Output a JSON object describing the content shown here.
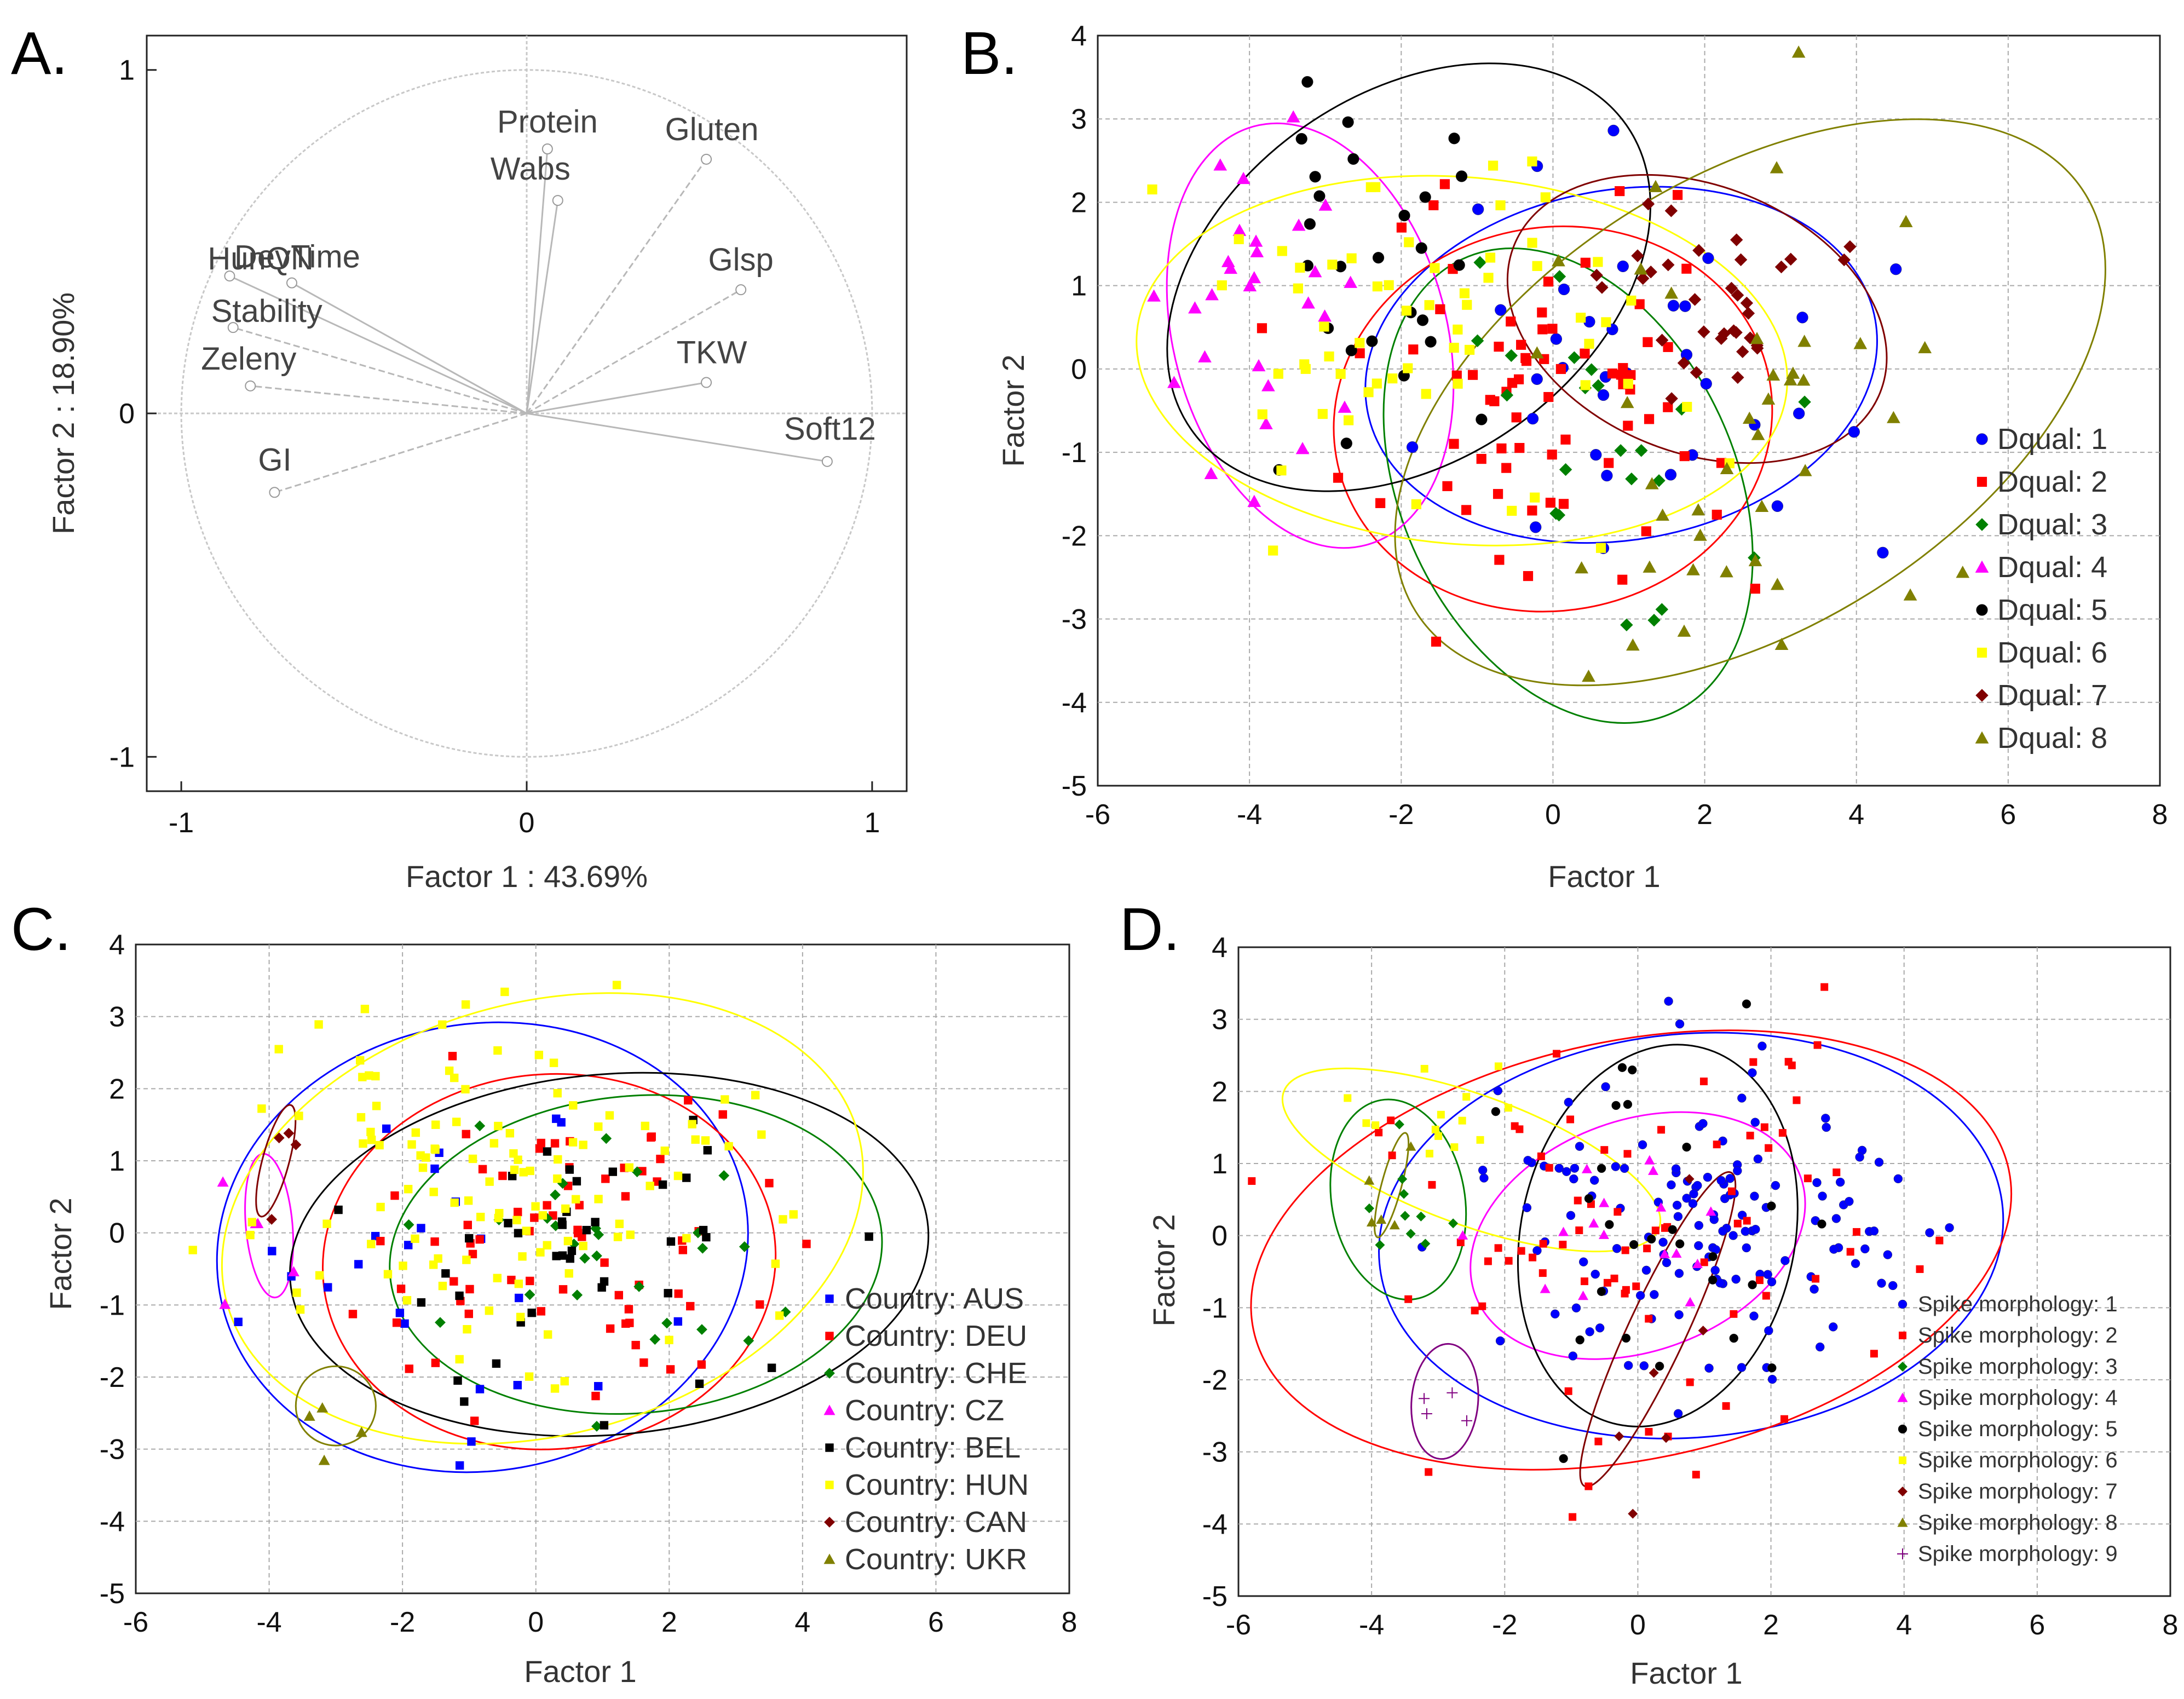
{
  "chart_data": [
    {
      "type": "scatter",
      "letter": "A.",
      "title": "",
      "xlabel": "Factor 1 : 43.69%",
      "ylabel": "Factor 2 : 18.90%",
      "xlim": [
        -1.1,
        1.1
      ],
      "ylim": [
        -1.1,
        1.1
      ],
      "xticks": [
        "-1",
        "0",
        "1"
      ],
      "yticks": [
        "-1",
        "0",
        "1"
      ],
      "xtick_values": [
        -1,
        0,
        1
      ],
      "ytick_values": [
        -1,
        0,
        1
      ],
      "grid": false,
      "unit_circle": true,
      "vectors": [
        {
          "name": "Protein",
          "x": 0.06,
          "y": 0.77,
          "line": "solid"
        },
        {
          "name": "Wabs",
          "x": 0.09,
          "y": 0.62,
          "line": "solid"
        },
        {
          "name": "Gluten",
          "x": 0.52,
          "y": 0.74,
          "line": "dashed"
        },
        {
          "name": "Glsp",
          "x": 0.62,
          "y": 0.36,
          "line": "dashed"
        },
        {
          "name": "TKW",
          "x": 0.52,
          "y": 0.09,
          "line": "solid"
        },
        {
          "name": "Soft12",
          "x": 0.87,
          "y": -0.14,
          "line": "solid"
        },
        {
          "name": "DevTime",
          "x": -0.68,
          "y": 0.38,
          "line": "solid"
        },
        {
          "name": "HunQN",
          "x": -0.86,
          "y": 0.4,
          "line": "solid"
        },
        {
          "name": "Stability",
          "x": -0.85,
          "y": 0.25,
          "line": "dashed"
        },
        {
          "name": "Zeleny",
          "x": -0.8,
          "y": 0.08,
          "line": "dashed"
        },
        {
          "name": "GI",
          "x": -0.73,
          "y": -0.23,
          "line": "dashed"
        }
      ]
    },
    {
      "type": "scatter",
      "letter": "B.",
      "xlabel": "Factor 1",
      "ylabel": "Factor 2",
      "xlim": [
        -6,
        8
      ],
      "ylim": [
        -5,
        4
      ],
      "xticks": [
        "-6",
        "-4",
        "-2",
        "0",
        "2",
        "4",
        "6",
        "8"
      ],
      "yticks": [
        "-5",
        "-4",
        "-3",
        "-2",
        "-1",
        "0",
        "1",
        "2",
        "3",
        "4"
      ],
      "grid": true,
      "legend_position": "bottom-right",
      "series": [
        {
          "name": "Dqual: 1",
          "color": "#0000ff",
          "marker": "circle",
          "center": [
            0.8,
            -0.2
          ],
          "spread": [
            1.3,
            1.1
          ],
          "n": 34,
          "ellipse": {
            "cx": 0.9,
            "cy": 0.05,
            "rx": 3.4,
            "ry": 2.1,
            "rot": -10
          }
        },
        {
          "name": "Dqual: 2",
          "color": "#ff0000",
          "marker": "square",
          "center": [
            -0.3,
            -0.4
          ],
          "spread": [
            1.4,
            1.1
          ],
          "n": 70,
          "ellipse": {
            "cx": 0.0,
            "cy": -0.6,
            "rx": 2.9,
            "ry": 2.3,
            "rot": -10
          }
        },
        {
          "name": "Dqual: 3",
          "color": "#008000",
          "marker": "diamond",
          "center": [
            0.5,
            -1.0
          ],
          "spread": [
            1.1,
            1.3
          ],
          "n": 22,
          "ellipse": {
            "cx": 0.2,
            "cy": -1.4,
            "rx": 2.2,
            "ry": 3.0,
            "rot": -25
          }
        },
        {
          "name": "Dqual: 4",
          "color": "#ff00ff",
          "marker": "triangle",
          "center": [
            -3.8,
            0.6
          ],
          "spread": [
            0.6,
            1.2
          ],
          "n": 28,
          "ellipse": {
            "cx": -3.2,
            "cy": 0.4,
            "rx": 1.8,
            "ry": 2.6,
            "rot": -15
          }
        },
        {
          "name": "Dqual: 5",
          "color": "#000000",
          "marker": "circle",
          "center": [
            -2.3,
            1.2
          ],
          "spread": [
            1.0,
            1.1
          ],
          "n": 26,
          "ellipse": {
            "cx": -1.9,
            "cy": 1.1,
            "rx": 3.5,
            "ry": 2.2,
            "rot": -35
          }
        },
        {
          "name": "Dqual: 6",
          "color": "#ffff00",
          "marker": "square",
          "center": [
            -1.6,
            0.0
          ],
          "spread": [
            1.6,
            1.2
          ],
          "n": 60,
          "ellipse": {
            "cx": -1.2,
            "cy": 0.1,
            "rx": 4.3,
            "ry": 2.2,
            "rot": 5
          }
        },
        {
          "name": "Dqual: 7",
          "color": "#800000",
          "marker": "diamond",
          "center": [
            2.0,
            0.9
          ],
          "spread": [
            0.8,
            0.6
          ],
          "n": 34,
          "ellipse": {
            "cx": 1.9,
            "cy": 0.6,
            "rx": 2.6,
            "ry": 1.6,
            "rot": 22
          }
        },
        {
          "name": "Dqual: 8",
          "color": "#808000",
          "marker": "triangle",
          "center": [
            2.6,
            -0.4
          ],
          "spread": [
            1.4,
            1.6
          ],
          "n": 40,
          "ellipse": {
            "cx": 2.6,
            "cy": -0.4,
            "rx": 5.2,
            "ry": 2.7,
            "rot": -32
          }
        }
      ]
    },
    {
      "type": "scatter",
      "letter": "C.",
      "xlabel": "Factor 1",
      "ylabel": "Factor 2",
      "xlim": [
        -6,
        8
      ],
      "ylim": [
        -5,
        4
      ],
      "xticks": [
        "-6",
        "-4",
        "-2",
        "0",
        "2",
        "4",
        "6",
        "8"
      ],
      "yticks": [
        "-5",
        "-4",
        "-3",
        "-2",
        "-1",
        "0",
        "1",
        "2",
        "3",
        "4"
      ],
      "grid": true,
      "legend_position": "bottom-right",
      "series": [
        {
          "name": "Country: AUS",
          "color": "#0000ff",
          "marker": "square",
          "center": [
            -1.2,
            -0.6
          ],
          "spread": [
            1.8,
            1.3
          ],
          "n": 24,
          "ellipse": {
            "cx": -0.8,
            "cy": -0.2,
            "rx": 4.0,
            "ry": 3.1,
            "rot": -10
          }
        },
        {
          "name": "Country: DEU",
          "color": "#ff0000",
          "marker": "square",
          "center": [
            0.4,
            -0.2
          ],
          "spread": [
            1.4,
            1.2
          ],
          "n": 70,
          "ellipse": {
            "cx": 0.2,
            "cy": -0.4,
            "rx": 3.4,
            "ry": 2.6,
            "rot": -5
          }
        },
        {
          "name": "Country: CHE",
          "color": "#008000",
          "marker": "diamond",
          "center": [
            1.2,
            0.0
          ],
          "spread": [
            1.3,
            1.0
          ],
          "n": 28,
          "ellipse": {
            "cx": 1.5,
            "cy": -0.3,
            "rx": 3.7,
            "ry": 2.2,
            "rot": -5
          }
        },
        {
          "name": "Country: CZ",
          "color": "#ff00ff",
          "marker": "triangle",
          "center": [
            -4.1,
            0.0
          ],
          "spread": [
            0.3,
            0.6
          ],
          "n": 5,
          "ellipse": {
            "cx": -4.0,
            "cy": 0.1,
            "rx": 0.35,
            "ry": 1.0,
            "rot": -5
          }
        },
        {
          "name": "Country: BEL",
          "color": "#000000",
          "marker": "square",
          "center": [
            0.5,
            -0.5
          ],
          "spread": [
            1.8,
            1.2
          ],
          "n": 40,
          "ellipse": {
            "cx": 1.1,
            "cy": -0.3,
            "rx": 4.8,
            "ry": 2.5,
            "rot": -5
          }
        },
        {
          "name": "Country: HUN",
          "color": "#ffff00",
          "marker": "square",
          "center": [
            -0.5,
            0.6
          ],
          "spread": [
            1.8,
            1.2
          ],
          "n": 120,
          "ellipse": {
            "cx": 0.1,
            "cy": 0.2,
            "rx": 4.9,
            "ry": 3.0,
            "rot": -15
          }
        },
        {
          "name": "Country: CAN",
          "color": "#800000",
          "marker": "diamond",
          "center": [
            -3.9,
            1.0
          ],
          "spread": [
            0.2,
            0.5
          ],
          "n": 4,
          "ellipse": {
            "cx": -3.9,
            "cy": 1.0,
            "rx": 0.2,
            "ry": 0.8,
            "rot": 15
          }
        },
        {
          "name": "Country: UKR",
          "color": "#808000",
          "marker": "triangle",
          "center": [
            -3.1,
            -2.4
          ],
          "spread": [
            0.3,
            0.4
          ],
          "n": 4,
          "ellipse": {
            "cx": -3.0,
            "cy": -2.4,
            "rx": 0.6,
            "ry": 0.55,
            "rot": 0
          }
        }
      ]
    },
    {
      "type": "scatter",
      "letter": "D.",
      "xlabel": "Factor 1",
      "ylabel": "Factor 2",
      "xlim": [
        -6,
        8
      ],
      "ylim": [
        -5,
        4
      ],
      "xticks": [
        "-6",
        "-4",
        "-2",
        "0",
        "2",
        "4",
        "6",
        "8"
      ],
      "yticks": [
        "-5",
        "-4",
        "-3",
        "-2",
        "-1",
        "0",
        "1",
        "2",
        "3",
        "4"
      ],
      "grid": true,
      "legend_position": "bottom-right",
      "series": [
        {
          "name": "Spike morphology: 1",
          "color": "#0000ff",
          "marker": "circle",
          "center": [
            0.9,
            0.4
          ],
          "spread": [
            1.5,
            1.1
          ],
          "n": 140,
          "ellipse": {
            "cx": 0.8,
            "cy": 0.0,
            "rx": 4.7,
            "ry": 2.8,
            "rot": -5
          }
        },
        {
          "name": "Spike morphology: 2",
          "color": "#ff0000",
          "marker": "square",
          "center": [
            0.0,
            0.0
          ],
          "spread": [
            2.2,
            1.5
          ],
          "n": 80,
          "ellipse": {
            "cx": -0.1,
            "cy": -0.2,
            "rx": 5.8,
            "ry": 2.9,
            "rot": -12
          }
        },
        {
          "name": "Spike morphology: 3",
          "color": "#008000",
          "marker": "diamond",
          "center": [
            -3.6,
            0.5
          ],
          "spread": [
            0.5,
            0.6
          ],
          "n": 10,
          "ellipse": {
            "cx": -3.6,
            "cy": 0.5,
            "rx": 1.0,
            "ry": 1.4,
            "rot": -10
          }
        },
        {
          "name": "Spike morphology: 4",
          "color": "#ff00ff",
          "marker": "triangle",
          "center": [
            0.0,
            0.0
          ],
          "spread": [
            1.2,
            0.8
          ],
          "n": 16,
          "ellipse": {
            "cx": 0.0,
            "cy": 0.0,
            "rx": 2.6,
            "ry": 1.6,
            "rot": -20
          }
        },
        {
          "name": "Spike morphology: 5",
          "color": "#000000",
          "marker": "circle",
          "center": [
            0.3,
            -0.4
          ],
          "spread": [
            1.2,
            1.4
          ],
          "n": 26,
          "ellipse": {
            "cx": 0.3,
            "cy": 0.0,
            "rx": 2.9,
            "ry": 1.9,
            "rot": -78
          }
        },
        {
          "name": "Spike morphology: 6",
          "color": "#ffff00",
          "marker": "square",
          "center": [
            -3.1,
            1.5
          ],
          "spread": [
            1.0,
            0.4
          ],
          "n": 14,
          "ellipse": {
            "cx": -2.5,
            "cy": 1.05,
            "rx": 3.0,
            "ry": 0.9,
            "rot": 20
          }
        },
        {
          "name": "Spike morphology: 7",
          "color": "#800000",
          "marker": "diamond",
          "center": [
            0.2,
            -1.6
          ],
          "spread": [
            0.6,
            1.2
          ],
          "n": 6,
          "ellipse": {
            "cx": 0.3,
            "cy": -1.3,
            "rx": 2.6,
            "ry": 0.4,
            "rot": -65
          }
        },
        {
          "name": "Spike morphology: 8",
          "color": "#808000",
          "marker": "triangle",
          "center": [
            -3.7,
            0.6
          ],
          "spread": [
            0.2,
            0.5
          ],
          "n": 5,
          "ellipse": {
            "cx": -3.7,
            "cy": 0.7,
            "rx": 0.15,
            "ry": 0.75,
            "rot": 15
          }
        },
        {
          "name": "Spike morphology: 9",
          "color": "#800080",
          "marker": "plus",
          "center": [
            -3.0,
            -2.3
          ],
          "spread": [
            0.3,
            0.4
          ],
          "n": 4,
          "ellipse": {
            "cx": -2.9,
            "cy": -2.3,
            "rx": 0.5,
            "ry": 0.8,
            "rot": 5
          }
        }
      ]
    }
  ]
}
